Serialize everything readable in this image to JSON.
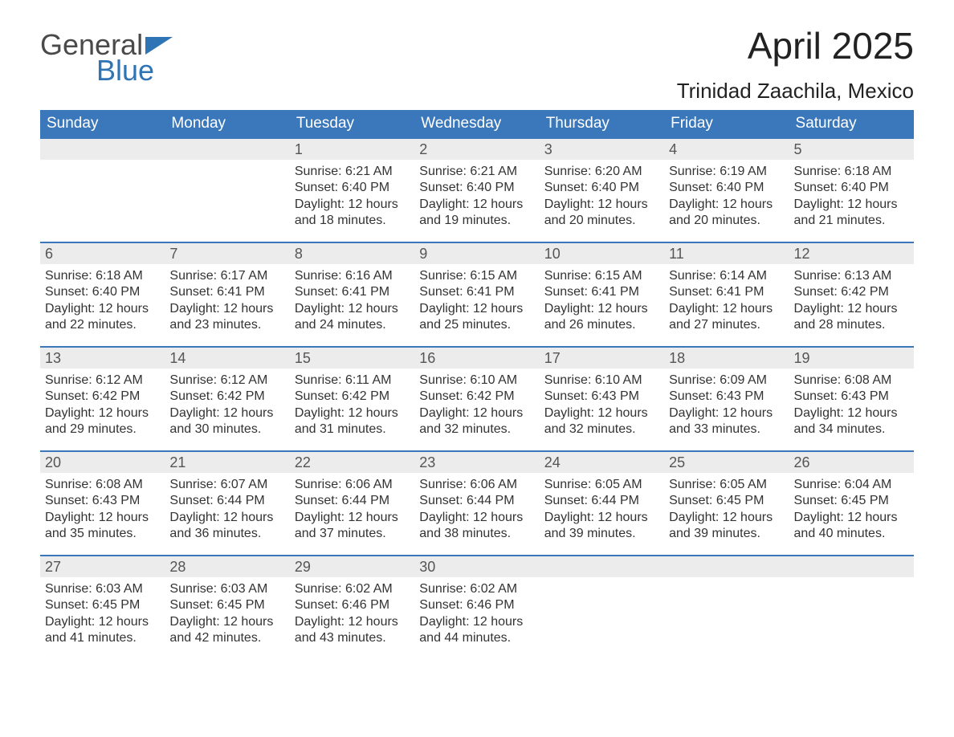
{
  "colors": {
    "header_bg": "#3b78bb",
    "header_text": "#ffffff",
    "daynum_bg": "#ececec",
    "daynum_text": "#555555",
    "body_text": "#333333",
    "logo_gray": "#4a4a4a",
    "logo_blue": "#2f74b5",
    "week_border": "#3b78bb",
    "page_bg": "#ffffff"
  },
  "logo": {
    "line1": "General",
    "line2": "Blue"
  },
  "title": "April 2025",
  "subtitle": "Trinidad Zaachila, Mexico",
  "days_of_week": [
    "Sunday",
    "Monday",
    "Tuesday",
    "Wednesday",
    "Thursday",
    "Friday",
    "Saturday"
  ],
  "labels": {
    "sunrise": "Sunrise:",
    "sunset": "Sunset:",
    "daylight": "Daylight:"
  },
  "weeks": [
    [
      {
        "empty": true
      },
      {
        "empty": true
      },
      {
        "n": "1",
        "sunrise": "6:21 AM",
        "sunset": "6:40 PM",
        "daylight": "12 hours and 18 minutes."
      },
      {
        "n": "2",
        "sunrise": "6:21 AM",
        "sunset": "6:40 PM",
        "daylight": "12 hours and 19 minutes."
      },
      {
        "n": "3",
        "sunrise": "6:20 AM",
        "sunset": "6:40 PM",
        "daylight": "12 hours and 20 minutes."
      },
      {
        "n": "4",
        "sunrise": "6:19 AM",
        "sunset": "6:40 PM",
        "daylight": "12 hours and 20 minutes."
      },
      {
        "n": "5",
        "sunrise": "6:18 AM",
        "sunset": "6:40 PM",
        "daylight": "12 hours and 21 minutes."
      }
    ],
    [
      {
        "n": "6",
        "sunrise": "6:18 AM",
        "sunset": "6:40 PM",
        "daylight": "12 hours and 22 minutes."
      },
      {
        "n": "7",
        "sunrise": "6:17 AM",
        "sunset": "6:41 PM",
        "daylight": "12 hours and 23 minutes."
      },
      {
        "n": "8",
        "sunrise": "6:16 AM",
        "sunset": "6:41 PM",
        "daylight": "12 hours and 24 minutes."
      },
      {
        "n": "9",
        "sunrise": "6:15 AM",
        "sunset": "6:41 PM",
        "daylight": "12 hours and 25 minutes."
      },
      {
        "n": "10",
        "sunrise": "6:15 AM",
        "sunset": "6:41 PM",
        "daylight": "12 hours and 26 minutes."
      },
      {
        "n": "11",
        "sunrise": "6:14 AM",
        "sunset": "6:41 PM",
        "daylight": "12 hours and 27 minutes."
      },
      {
        "n": "12",
        "sunrise": "6:13 AM",
        "sunset": "6:42 PM",
        "daylight": "12 hours and 28 minutes."
      }
    ],
    [
      {
        "n": "13",
        "sunrise": "6:12 AM",
        "sunset": "6:42 PM",
        "daylight": "12 hours and 29 minutes."
      },
      {
        "n": "14",
        "sunrise": "6:12 AM",
        "sunset": "6:42 PM",
        "daylight": "12 hours and 30 minutes."
      },
      {
        "n": "15",
        "sunrise": "6:11 AM",
        "sunset": "6:42 PM",
        "daylight": "12 hours and 31 minutes."
      },
      {
        "n": "16",
        "sunrise": "6:10 AM",
        "sunset": "6:42 PM",
        "daylight": "12 hours and 32 minutes."
      },
      {
        "n": "17",
        "sunrise": "6:10 AM",
        "sunset": "6:43 PM",
        "daylight": "12 hours and 32 minutes."
      },
      {
        "n": "18",
        "sunrise": "6:09 AM",
        "sunset": "6:43 PM",
        "daylight": "12 hours and 33 minutes."
      },
      {
        "n": "19",
        "sunrise": "6:08 AM",
        "sunset": "6:43 PM",
        "daylight": "12 hours and 34 minutes."
      }
    ],
    [
      {
        "n": "20",
        "sunrise": "6:08 AM",
        "sunset": "6:43 PM",
        "daylight": "12 hours and 35 minutes."
      },
      {
        "n": "21",
        "sunrise": "6:07 AM",
        "sunset": "6:44 PM",
        "daylight": "12 hours and 36 minutes."
      },
      {
        "n": "22",
        "sunrise": "6:06 AM",
        "sunset": "6:44 PM",
        "daylight": "12 hours and 37 minutes."
      },
      {
        "n": "23",
        "sunrise": "6:06 AM",
        "sunset": "6:44 PM",
        "daylight": "12 hours and 38 minutes."
      },
      {
        "n": "24",
        "sunrise": "6:05 AM",
        "sunset": "6:44 PM",
        "daylight": "12 hours and 39 minutes."
      },
      {
        "n": "25",
        "sunrise": "6:05 AM",
        "sunset": "6:45 PM",
        "daylight": "12 hours and 39 minutes."
      },
      {
        "n": "26",
        "sunrise": "6:04 AM",
        "sunset": "6:45 PM",
        "daylight": "12 hours and 40 minutes."
      }
    ],
    [
      {
        "n": "27",
        "sunrise": "6:03 AM",
        "sunset": "6:45 PM",
        "daylight": "12 hours and 41 minutes."
      },
      {
        "n": "28",
        "sunrise": "6:03 AM",
        "sunset": "6:45 PM",
        "daylight": "12 hours and 42 minutes."
      },
      {
        "n": "29",
        "sunrise": "6:02 AM",
        "sunset": "6:46 PM",
        "daylight": "12 hours and 43 minutes."
      },
      {
        "n": "30",
        "sunrise": "6:02 AM",
        "sunset": "6:46 PM",
        "daylight": "12 hours and 44 minutes."
      },
      {
        "empty": true
      },
      {
        "empty": true
      },
      {
        "empty": true
      }
    ]
  ]
}
